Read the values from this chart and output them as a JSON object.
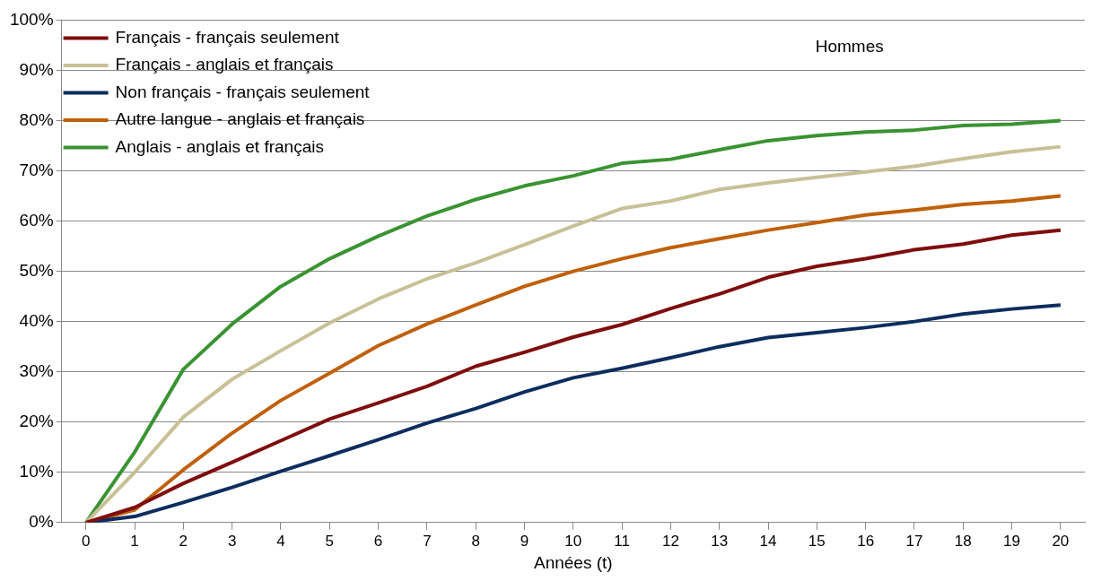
{
  "chart_data": {
    "type": "line",
    "xlabel": "Années (t)",
    "annotations": [
      "Hommes"
    ],
    "x": [
      0,
      1,
      2,
      3,
      4,
      5,
      6,
      7,
      8,
      9,
      10,
      11,
      12,
      13,
      14,
      15,
      16,
      17,
      18,
      19,
      20
    ],
    "xlim": [
      -0.5,
      20.5
    ],
    "xticks": [
      0,
      1,
      2,
      3,
      4,
      5,
      6,
      7,
      8,
      9,
      10,
      11,
      12,
      13,
      14,
      15,
      16,
      17,
      18,
      19,
      20
    ],
    "series": [
      {
        "name": "Français - français seulement",
        "color": "#7f0d0d",
        "values": [
          0,
          3,
          7.8,
          12,
          16.3,
          20.6,
          23.8,
          27.1,
          31.1,
          33.9,
          36.9,
          39.4,
          42.6,
          45.5,
          48.8,
          51,
          52.5,
          54.3,
          55.4,
          57.2,
          58.2
        ]
      },
      {
        "name": "Français - anglais et français",
        "color": "#c8c096",
        "values": [
          0,
          10,
          21,
          28.5,
          34.2,
          39.7,
          44.5,
          48.5,
          51.7,
          55.3,
          59,
          62.5,
          64,
          66.3,
          67.6,
          68.7,
          69.8,
          70.9,
          72.4,
          73.8,
          74.8
        ]
      },
      {
        "name": "Non français - français seulement",
        "color": "#0d2d5e",
        "values": [
          0,
          1.2,
          4,
          7,
          10.2,
          13.3,
          16.5,
          19.8,
          22.7,
          26,
          28.8,
          30.7,
          32.8,
          35,
          36.8,
          37.8,
          38.8,
          40,
          41.5,
          42.5,
          43.3
        ]
      },
      {
        "name": "Autre langue - anglais et français",
        "color": "#c0600a",
        "values": [
          0,
          2.5,
          10.5,
          17.8,
          24.3,
          29.7,
          35.2,
          39.5,
          43.3,
          47,
          50,
          52.5,
          54.7,
          56.5,
          58.2,
          59.7,
          61.2,
          62.2,
          63.3,
          64,
          65
        ]
      },
      {
        "name": "Anglais - anglais et français",
        "color": "#3a9332",
        "values": [
          0,
          14,
          30.5,
          39.5,
          47,
          52.5,
          57,
          61,
          64.3,
          67,
          69,
          71.5,
          72.3,
          74.2,
          76,
          77,
          77.7,
          78.1,
          79,
          79.3,
          80
        ]
      }
    ],
    "ylim": [
      0,
      100
    ],
    "yticks": [
      {
        "value": 0,
        "label": "0%"
      },
      {
        "value": 10,
        "label": "10%"
      },
      {
        "value": 20,
        "label": "20%"
      },
      {
        "value": 30,
        "label": "30%"
      },
      {
        "value": 40,
        "label": "40%"
      },
      {
        "value": 50,
        "label": "50%"
      },
      {
        "value": 60,
        "label": "60%"
      },
      {
        "value": 70,
        "label": "70%"
      },
      {
        "value": 80,
        "label": "80%"
      },
      {
        "value": 90,
        "label": "90%"
      },
      {
        "value": 100,
        "label": "100%"
      }
    ],
    "grid": "y",
    "legend": "top left",
    "marker": "none",
    "line_style": "solid"
  }
}
